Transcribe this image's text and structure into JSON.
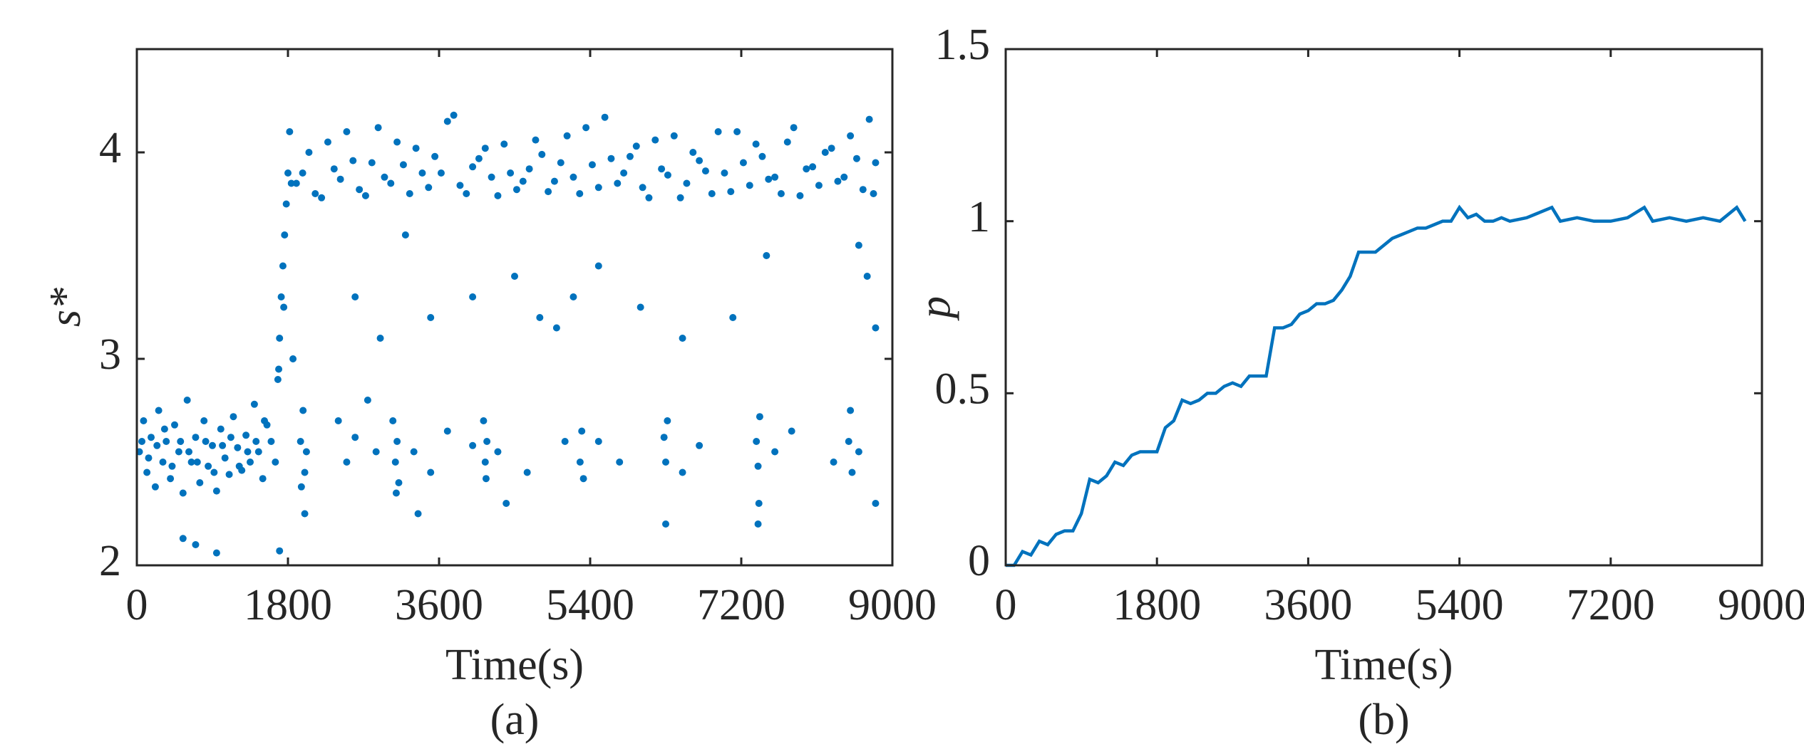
{
  "chart_data": [
    {
      "type": "scatter",
      "xlabel": "Time(s)",
      "ylabel": "s*",
      "caption": "(a)",
      "color": "#0072BD",
      "xlim": [
        0,
        9000
      ],
      "ylim": [
        2,
        4.5
      ],
      "xticks": [
        0,
        1800,
        3600,
        5400,
        7200,
        9000
      ],
      "yticks": [
        2,
        3,
        4
      ],
      "x": [
        30,
        80,
        120,
        170,
        220,
        260,
        310,
        350,
        400,
        450,
        500,
        550,
        600,
        650,
        700,
        750,
        800,
        850,
        900,
        950,
        1000,
        1050,
        1100,
        1150,
        1200,
        1250,
        1300,
        1350,
        1400,
        1450,
        1500,
        1550,
        1600,
        1650,
        60,
        140,
        240,
        330,
        420,
        520,
        620,
        720,
        820,
        920,
        1020,
        1120,
        1220,
        1320,
        1420,
        1520,
        550,
        700,
        950,
        1700,
        1680,
        1700,
        1720,
        1740,
        1760,
        1780,
        1800,
        1820,
        1840,
        1860,
        1750,
        1690,
        1900,
        2050,
        2200,
        2350,
        2500,
        2650,
        2800,
        2950,
        3100,
        3250,
        3400,
        3550,
        3700,
        3850,
        4000,
        4150,
        4300,
        4450,
        4600,
        4750,
        4900,
        5050,
        5200,
        5350,
        5500,
        5650,
        5800,
        5950,
        6100,
        6250,
        6400,
        6550,
        6700,
        6850,
        7000,
        7150,
        7300,
        7450,
        7600,
        7750,
        7900,
        8050,
        8200,
        8350,
        8500,
        8650,
        8800,
        1975,
        2125,
        2275,
        2425,
        2575,
        2725,
        2875,
        3025,
        3175,
        3325,
        3475,
        3625,
        3775,
        3925,
        4075,
        4225,
        4375,
        4525,
        4675,
        4825,
        4975,
        5125,
        5275,
        5425,
        5575,
        5725,
        5875,
        6025,
        6175,
        6325,
        6475,
        6625,
        6775,
        6925,
        7075,
        7225,
        7375,
        7525,
        7675,
        7825,
        7975,
        8125,
        8275,
        8425,
        8575,
        8725,
        8775,
        1950,
        1980,
        2000,
        2020,
        1960,
        2400,
        2500,
        2600,
        2750,
        2850,
        3050,
        3080,
        3100,
        3120,
        3090,
        3300,
        3500,
        3700,
        4000,
        4130,
        4150,
        4170,
        4160,
        4300,
        4650,
        5100,
        5280,
        5300,
        5320,
        5500,
        5750,
        6280,
        6300,
        6320,
        6500,
        6700,
        7380,
        7400,
        7420,
        7410,
        7600,
        7800,
        8300,
        8480,
        8500,
        8520,
        8600,
        2600,
        2900,
        3200,
        3500,
        4000,
        4500,
        4800,
        5000,
        5200,
        5500,
        6000,
        6500,
        7100,
        7500,
        8600,
        8700,
        8800,
        3350,
        4400,
        6300,
        7400,
        8800,
        2000
      ],
      "values": [
        2.55,
        2.7,
        2.45,
        2.62,
        2.38,
        2.75,
        2.5,
        2.6,
        2.42,
        2.68,
        2.55,
        2.35,
        2.8,
        2.5,
        2.62,
        2.4,
        2.7,
        2.48,
        2.58,
        2.36,
        2.66,
        2.52,
        2.44,
        2.72,
        2.57,
        2.46,
        2.63,
        2.5,
        2.78,
        2.55,
        2.42,
        2.68,
        2.6,
        2.5,
        2.6,
        2.52,
        2.58,
        2.66,
        2.48,
        2.6,
        2.55,
        2.5,
        2.6,
        2.45,
        2.58,
        2.62,
        2.48,
        2.55,
        2.6,
        2.7,
        2.13,
        2.1,
        2.06,
        2.07,
        2.9,
        3.1,
        3.3,
        3.45,
        3.6,
        3.75,
        3.9,
        4.1,
        3.85,
        3.0,
        3.25,
        2.95,
        3.85,
        4.0,
        3.78,
        3.92,
        4.1,
        3.82,
        3.95,
        3.88,
        4.05,
        3.8,
        3.9,
        3.98,
        4.15,
        3.84,
        3.93,
        4.02,
        3.79,
        3.9,
        3.86,
        4.06,
        3.81,
        3.95,
        3.88,
        4.12,
        3.83,
        3.97,
        3.9,
        4.03,
        3.78,
        3.92,
        4.08,
        3.85,
        3.96,
        3.8,
        3.9,
        4.1,
        3.84,
        3.98,
        3.88,
        4.05,
        3.79,
        3.93,
        4.0,
        3.86,
        4.08,
        3.82,
        3.95,
        3.9,
        3.8,
        4.05,
        3.87,
        3.96,
        3.79,
        4.12,
        3.85,
        3.94,
        4.02,
        3.83,
        3.9,
        4.18,
        3.8,
        3.97,
        3.88,
        4.04,
        3.82,
        3.92,
        3.99,
        3.86,
        4.08,
        3.8,
        3.94,
        4.17,
        3.85,
        3.98,
        3.83,
        4.06,
        3.89,
        3.78,
        4.0,
        3.91,
        4.1,
        3.81,
        3.95,
        4.04,
        3.87,
        3.8,
        4.12,
        3.92,
        3.84,
        4.02,
        3.88,
        3.97,
        4.16,
        3.8,
        2.6,
        2.75,
        2.45,
        2.55,
        2.38,
        2.7,
        2.5,
        2.62,
        2.8,
        2.55,
        2.7,
        2.5,
        2.6,
        2.4,
        2.35,
        2.55,
        2.45,
        2.65,
        2.58,
        2.7,
        2.5,
        2.6,
        2.42,
        2.55,
        2.45,
        2.6,
        2.5,
        2.65,
        2.42,
        2.6,
        2.5,
        2.62,
        2.5,
        2.7,
        2.45,
        2.58,
        2.6,
        2.48,
        2.72,
        2.3,
        2.55,
        2.65,
        2.5,
        2.6,
        2.75,
        2.45,
        2.55,
        3.3,
        3.1,
        3.6,
        3.2,
        3.3,
        3.4,
        3.2,
        3.15,
        3.3,
        3.45,
        3.25,
        3.1,
        3.2,
        3.5,
        3.55,
        3.4,
        3.15,
        2.25,
        2.3,
        2.2,
        2.2,
        2.3,
        2.25
      ]
    },
    {
      "type": "line",
      "xlabel": "Time(s)",
      "ylabel": "p",
      "caption": "(b)",
      "color": "#0072BD",
      "xlim": [
        0,
        9000
      ],
      "ylim": [
        0,
        1.5
      ],
      "xticks": [
        0,
        1800,
        3600,
        5400,
        7200,
        9000
      ],
      "yticks": [
        0,
        0.5,
        1,
        1.5
      ],
      "x": [
        0,
        100,
        200,
        300,
        400,
        500,
        600,
        700,
        800,
        900,
        1000,
        1100,
        1200,
        1300,
        1400,
        1500,
        1600,
        1700,
        1800,
        1900,
        2000,
        2100,
        2200,
        2300,
        2400,
        2500,
        2600,
        2700,
        2800,
        2900,
        3000,
        3100,
        3200,
        3300,
        3400,
        3500,
        3600,
        3700,
        3800,
        3900,
        4000,
        4100,
        4200,
        4300,
        4400,
        4500,
        4600,
        4700,
        4800,
        4900,
        5000,
        5100,
        5200,
        5300,
        5400,
        5500,
        5600,
        5700,
        5800,
        5900,
        6000,
        6200,
        6300,
        6500,
        6600,
        6800,
        7000,
        7200,
        7400,
        7600,
        7700,
        7900,
        8100,
        8300,
        8500,
        8700,
        8800
      ],
      "values": [
        0,
        0,
        0.04,
        0.03,
        0.07,
        0.06,
        0.09,
        0.1,
        0.1,
        0.15,
        0.25,
        0.24,
        0.26,
        0.3,
        0.29,
        0.32,
        0.33,
        0.33,
        0.33,
        0.4,
        0.42,
        0.48,
        0.47,
        0.48,
        0.5,
        0.5,
        0.52,
        0.53,
        0.52,
        0.55,
        0.55,
        0.55,
        0.69,
        0.69,
        0.7,
        0.73,
        0.74,
        0.76,
        0.76,
        0.77,
        0.8,
        0.84,
        0.91,
        0.91,
        0.91,
        0.93,
        0.95,
        0.96,
        0.97,
        0.98,
        0.98,
        0.99,
        1,
        1,
        1.04,
        1.01,
        1.02,
        1,
        1,
        1.01,
        1,
        1.01,
        1.02,
        1.04,
        1,
        1.01,
        1,
        1,
        1.01,
        1.04,
        1,
        1.01,
        1,
        1.01,
        1,
        1.04,
        1
      ]
    }
  ]
}
